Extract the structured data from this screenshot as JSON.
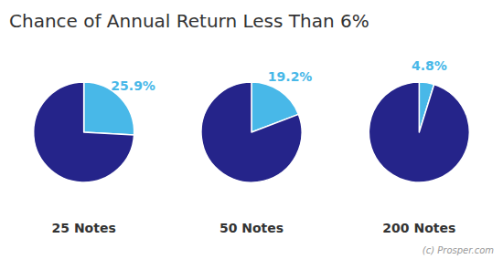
{
  "chart_data": {
    "type": "pie",
    "title": "Chance of Annual Return Less Than 6%",
    "series": [
      {
        "name": "25 Notes",
        "values": [
          25.9,
          74.1
        ],
        "value_labels": [
          "25.9%",
          null
        ]
      },
      {
        "name": "50 Notes",
        "values": [
          19.2,
          80.8
        ],
        "value_labels": [
          "19.2%",
          null
        ]
      },
      {
        "name": "200 Notes",
        "values": [
          4.8,
          95.2
        ],
        "value_labels": [
          "4.8%",
          null
        ]
      }
    ],
    "colors": [
      "#48B8E8",
      "#25248A"
    ],
    "data_labels": true,
    "annotation": "(c) Prosper.com"
  }
}
